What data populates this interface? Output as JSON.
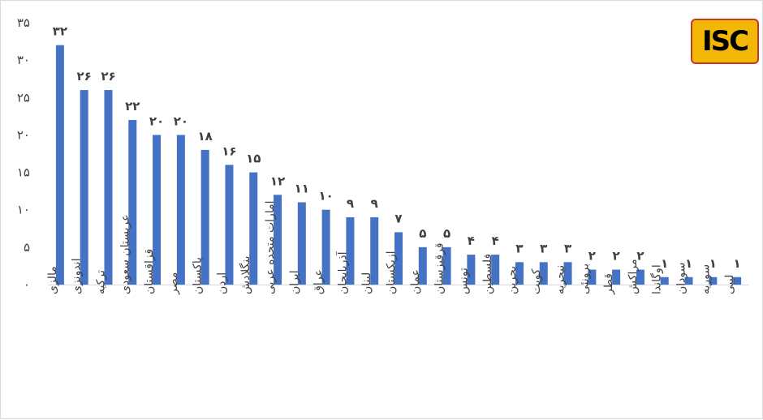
{
  "logo_text": "ISC",
  "colors": {
    "bar": "#4472c4",
    "text": "#404040"
  },
  "chart_data": {
    "type": "bar",
    "title": "",
    "xlabel": "",
    "ylabel": "",
    "ylim": [
      0,
      35
    ],
    "yticks": [
      "۰",
      "۵",
      "۱۰",
      "۱۵",
      "۲۰",
      "۲۵",
      "۳۰",
      "۳۵"
    ],
    "ytick_values": [
      0,
      5,
      10,
      15,
      20,
      25,
      30,
      35
    ],
    "grid": false,
    "legend": "none",
    "categories": [
      "مالزی",
      "اندونزی",
      "ترکیه",
      "عربستان سعودی",
      "قزاقستان",
      "مصر",
      "پاکستان",
      "اردن",
      "بنگلادش",
      "امارات متحده عربی",
      "ایران",
      "عراق",
      "آذربایجان",
      "لبنان",
      "ازبکستان",
      "عمان",
      "قرقیزستان",
      "تونس",
      "فلسطین",
      "بحرین",
      "کویت",
      "نیجریه",
      "برونئی",
      "قطر",
      "مراکش",
      "اوگاندا",
      "سودان",
      "سوریه",
      "لیبی"
    ],
    "values": [
      32,
      26,
      26,
      22,
      20,
      20,
      18,
      16,
      15,
      12,
      11,
      10,
      9,
      9,
      7,
      5,
      5,
      4,
      4,
      3,
      3,
      3,
      2,
      2,
      2,
      1,
      1,
      1,
      1
    ],
    "data_labels": [
      "۳۲",
      "۲۶",
      "۲۶",
      "۲۲",
      "۲۰",
      "۲۰",
      "۱۸",
      "۱۶",
      "۱۵",
      "۱۲",
      "۱۱",
      "۱۰",
      "۹",
      "۹",
      "۷",
      "۵",
      "۵",
      "۴",
      "۴",
      "۳",
      "۳",
      "۳",
      "۲",
      "۲",
      "۲",
      "۱",
      "۱",
      "۱",
      "۱"
    ]
  }
}
